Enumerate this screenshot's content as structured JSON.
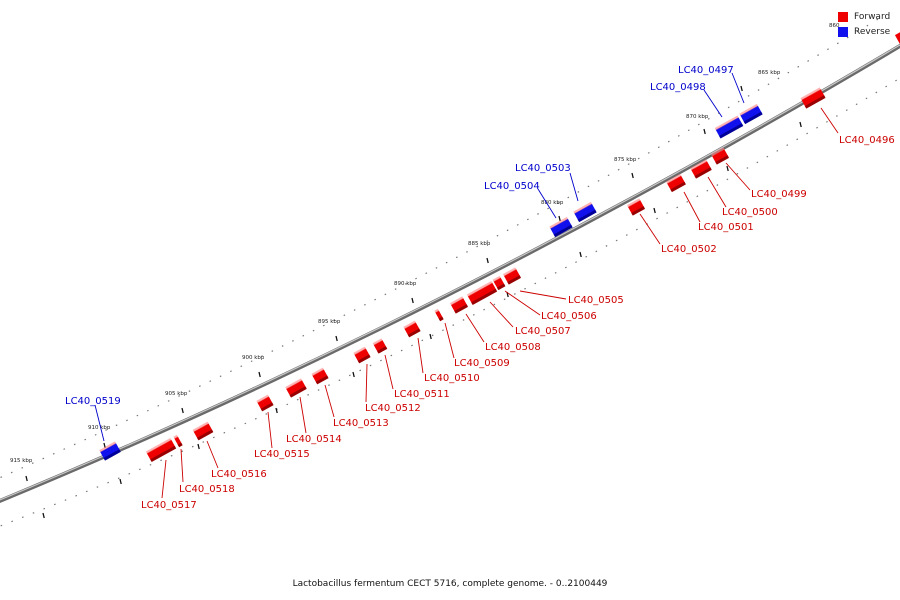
{
  "legend": [
    {
      "label": "Forward",
      "color": "#ee0000"
    },
    {
      "label": "Reverse",
      "color": "#1111ee"
    }
  ],
  "caption": "Lactobacillus fermentum CECT 5716, complete genome. - 0..2100449",
  "scale_labels": [
    "860",
    "865 kbp",
    "870 kbp",
    "875 kbp",
    "880 kbp",
    "885 kbp",
    "890 kbp",
    "895 kbp",
    "900 kbp",
    "905 kbp",
    "910 kbp",
    "915 kbp"
  ],
  "forward_genes": [
    "LC40_0496",
    "LC40_0499",
    "LC40_0500",
    "LC40_0501",
    "LC40_0502",
    "LC40_0505",
    "LC40_0506",
    "LC40_0507",
    "LC40_0508",
    "LC40_0509",
    "LC40_0510",
    "LC40_0511",
    "LC40_0512",
    "LC40_0513",
    "LC40_0514",
    "LC40_0515",
    "LC40_0516",
    "LC40_0517",
    "LC40_0518"
  ],
  "reverse_genes": [
    "LC40_0497",
    "LC40_0498",
    "LC40_0503",
    "LC40_0504",
    "LC40_0519"
  ]
}
